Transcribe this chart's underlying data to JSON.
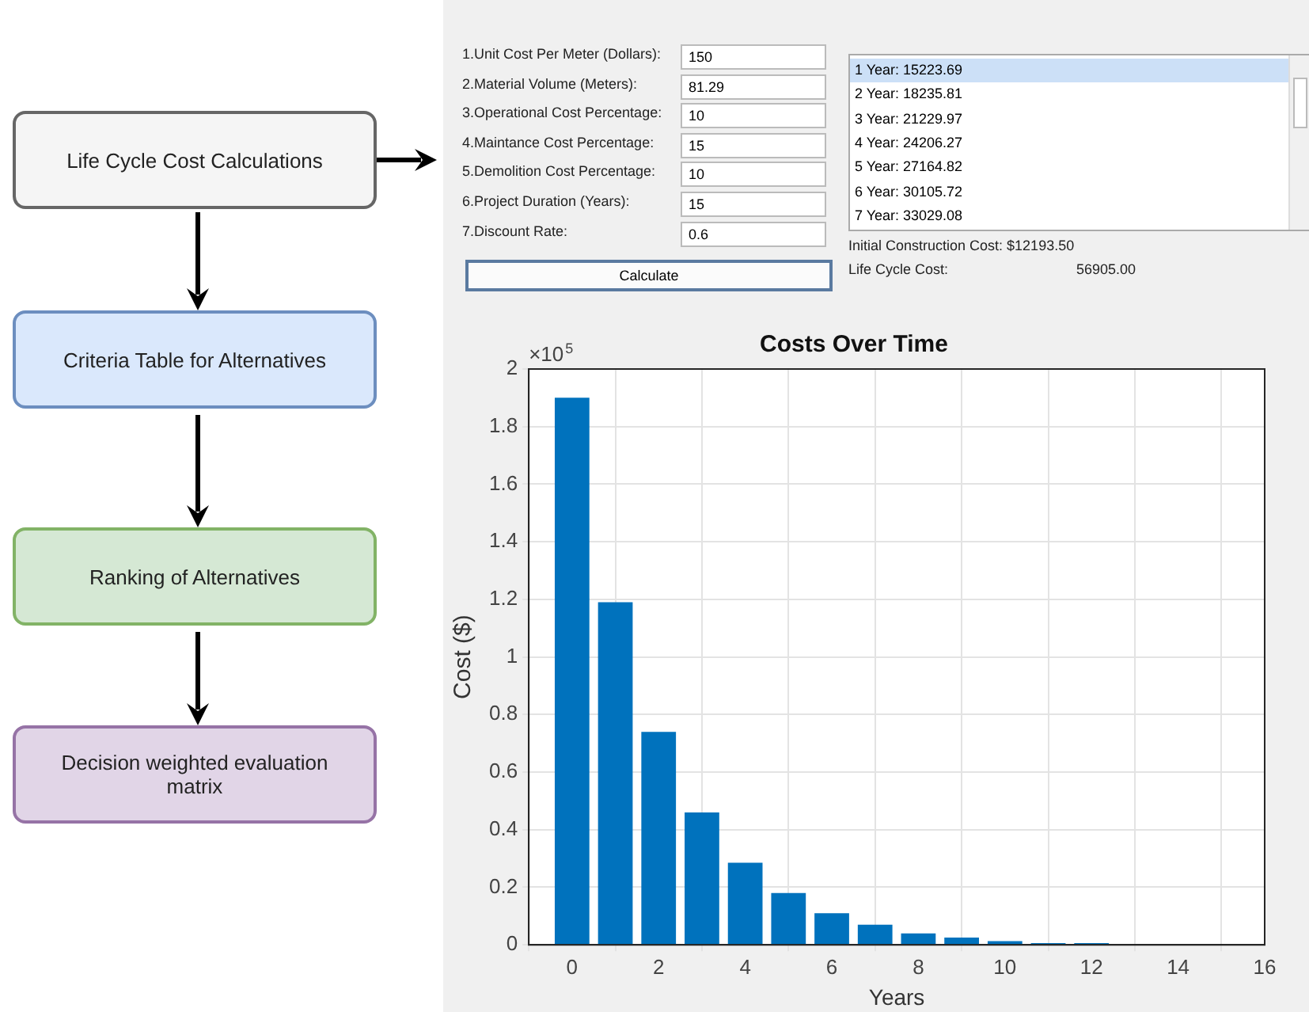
{
  "chart_data": {
    "type": "bar",
    "title": "Costs Over Time",
    "xlabel": "Years",
    "ylabel": "Cost ($)",
    "x": [
      0,
      1,
      2,
      3,
      4,
      5,
      6,
      7,
      8,
      9,
      10,
      11,
      12
    ],
    "values": [
      1.9,
      1.19,
      0.74,
      0.46,
      0.285,
      0.18,
      0.11,
      0.07,
      0.04,
      0.025,
      0.013,
      0.006,
      0.006
    ],
    "color": "#0072bd",
    "xlim": [
      -1,
      16
    ],
    "xticks": [
      0,
      2,
      4,
      6,
      8,
      10,
      12,
      14,
      16
    ],
    "ylim": [
      0,
      2
    ],
    "yticks": [
      0,
      0.2,
      0.4,
      0.6,
      0.8,
      1,
      1.2,
      1.4,
      1.6,
      1.8,
      2
    ],
    "grid": true,
    "annotations": [
      "Life Cycle Cost Calculations",
      "Criteria Table for Alternatives",
      "Ranking of Alternatives",
      "Decision weighted evaluation matrix",
      "1.Unit Cost Per Meter (Dollars):",
      "150",
      "2.Material Volume (Meters):",
      "81.29",
      "3.Operational Cost Percentage:",
      "10",
      "4.Maintance Cost Percentage:",
      "15",
      "5.Demolition Cost Percentage:",
      "10",
      "6.Project Duration (Years):",
      "15",
      "7.Discount Rate:",
      "0.6",
      "Calculate",
      "1 Year:  15223.69",
      "2 Year:  18235.81",
      "3 Year:  21229.97",
      "4 Year:  24206.27",
      "5 Year:  27164.82",
      "6 Year:  30105.72",
      "7 Year:  33029.08",
      "Initial Construction Cost: $12193.50",
      "Life Cycle Cost:",
      "56905.00",
      "×10$^{5}$"
    ]
  }
}
